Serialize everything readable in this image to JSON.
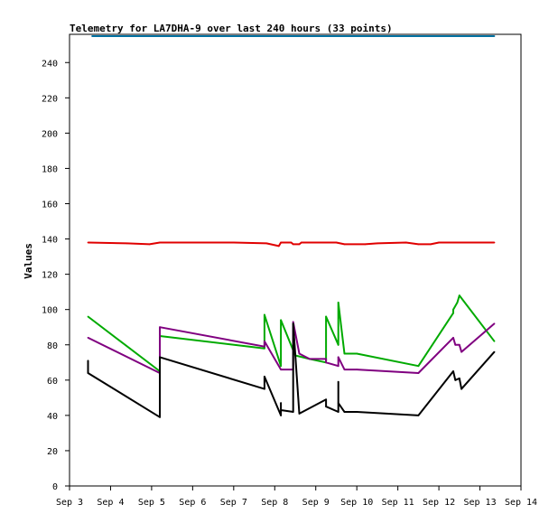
{
  "chart_data": {
    "type": "line",
    "title": "Telemetry for LA7DHA-9 over last 240 hours (33 points)",
    "xlabel": "",
    "ylabel": "Values",
    "x_tick_labels": [
      "Sep 3",
      "Sep 4",
      "Sep 5",
      "Sep 6",
      "Sep 7",
      "Sep 8",
      "Sep 9",
      "Sep 10",
      "Sep 11",
      "Sep 12",
      "Sep 13",
      "Sep 14"
    ],
    "xlim": [
      3.0,
      14.0
    ],
    "ylim": [
      0,
      256
    ],
    "y_ticks": [
      0,
      20,
      40,
      60,
      80,
      100,
      120,
      140,
      160,
      180,
      200,
      220,
      240
    ],
    "grid": false,
    "legend": "none",
    "series": [
      {
        "color": "#0070a0",
        "points": [
          [
            3.55,
            255
          ],
          [
            13.35,
            255
          ]
        ]
      },
      {
        "color": "#e00000",
        "points": [
          [
            3.45,
            138
          ],
          [
            4.4,
            137.5
          ],
          [
            4.95,
            137
          ],
          [
            5.2,
            138
          ],
          [
            6.0,
            138
          ],
          [
            7.0,
            138
          ],
          [
            7.8,
            137.5
          ],
          [
            8.1,
            136
          ],
          [
            8.15,
            138
          ],
          [
            8.4,
            138
          ],
          [
            8.45,
            137
          ],
          [
            8.6,
            137
          ],
          [
            8.65,
            138
          ],
          [
            9.0,
            138
          ],
          [
            9.5,
            138
          ],
          [
            9.7,
            137
          ],
          [
            10.2,
            137
          ],
          [
            10.5,
            137.5
          ],
          [
            11.2,
            138
          ],
          [
            11.5,
            137
          ],
          [
            11.8,
            137
          ],
          [
            12.0,
            138
          ],
          [
            12.5,
            138
          ],
          [
            13.35,
            138
          ]
        ]
      },
      {
        "color": "#00aa00",
        "points": [
          [
            3.45,
            96
          ],
          [
            5.2,
            65
          ],
          [
            5.2,
            85
          ],
          [
            7.75,
            78
          ],
          [
            7.75,
            97
          ],
          [
            8.15,
            68
          ],
          [
            8.15,
            94
          ],
          [
            8.5,
            74
          ],
          [
            8.85,
            72
          ],
          [
            9.25,
            70
          ],
          [
            9.25,
            96
          ],
          [
            9.55,
            80
          ],
          [
            9.55,
            104
          ],
          [
            9.7,
            75
          ],
          [
            10.0,
            75
          ],
          [
            11.5,
            68
          ],
          [
            12.35,
            98
          ],
          [
            12.35,
            100
          ],
          [
            12.45,
            104
          ],
          [
            12.5,
            108
          ],
          [
            13.35,
            82
          ]
        ]
      },
      {
        "color": "#800080",
        "points": [
          [
            3.45,
            84
          ],
          [
            5.2,
            64
          ],
          [
            5.2,
            90
          ],
          [
            7.75,
            79
          ],
          [
            7.75,
            82
          ],
          [
            8.15,
            66
          ],
          [
            8.45,
            66
          ],
          [
            8.45,
            93
          ],
          [
            8.6,
            75
          ],
          [
            8.85,
            72
          ],
          [
            9.25,
            72
          ],
          [
            9.25,
            70
          ],
          [
            9.55,
            68
          ],
          [
            9.55,
            73
          ],
          [
            9.7,
            66
          ],
          [
            10.0,
            66
          ],
          [
            11.5,
            64
          ],
          [
            12.35,
            84
          ],
          [
            12.4,
            80
          ],
          [
            12.5,
            80
          ],
          [
            12.55,
            76
          ],
          [
            13.35,
            92
          ]
        ]
      },
      {
        "color": "#000000",
        "points": [
          [
            3.45,
            71
          ],
          [
            3.45,
            64
          ],
          [
            5.2,
            39
          ],
          [
            5.2,
            73
          ],
          [
            7.75,
            55
          ],
          [
            7.75,
            62
          ],
          [
            8.15,
            40
          ],
          [
            8.15,
            47
          ],
          [
            8.15,
            43
          ],
          [
            8.45,
            42
          ],
          [
            8.45,
            92
          ],
          [
            8.6,
            41
          ],
          [
            9.25,
            49
          ],
          [
            9.25,
            45
          ],
          [
            9.55,
            42
          ],
          [
            9.55,
            59
          ],
          [
            9.55,
            47
          ],
          [
            9.7,
            42
          ],
          [
            10.0,
            42
          ],
          [
            11.5,
            40
          ],
          [
            12.35,
            65
          ],
          [
            12.4,
            60
          ],
          [
            12.5,
            61
          ],
          [
            12.55,
            55
          ],
          [
            13.35,
            76
          ]
        ]
      }
    ]
  }
}
